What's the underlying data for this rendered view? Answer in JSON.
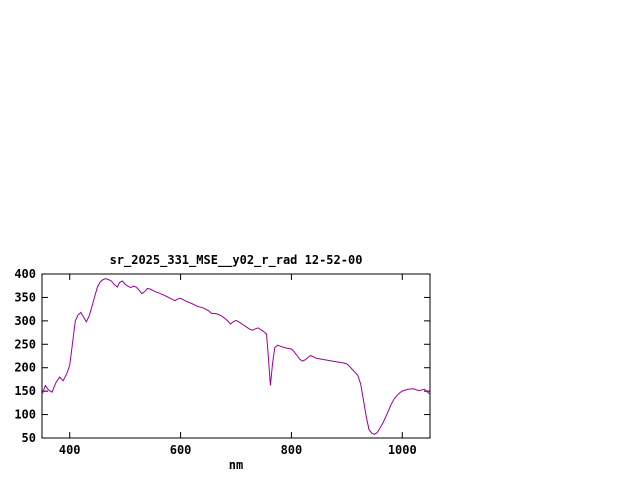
{
  "page": {
    "background": "#ffffff"
  },
  "chart_data": {
    "type": "line",
    "title": "sr_2025_331_MSE__y02_r_rad 12-52-00",
    "xlabel": "nm",
    "ylabel": "",
    "xlim": [
      350,
      1050
    ],
    "ylim": [
      50,
      400
    ],
    "xticks": [
      400,
      600,
      800,
      1000
    ],
    "yticks": [
      50,
      100,
      150,
      200,
      250,
      300,
      350,
      400
    ],
    "grid": false,
    "legend": "none",
    "line_color": "#990099",
    "x": [
      350,
      356,
      362,
      368,
      375,
      382,
      388,
      395,
      400,
      405,
      410,
      415,
      420,
      425,
      430,
      435,
      440,
      445,
      450,
      455,
      460,
      465,
      470,
      475,
      480,
      486,
      490,
      495,
      500,
      505,
      510,
      515,
      520,
      525,
      530,
      535,
      540,
      545,
      550,
      555,
      560,
      565,
      570,
      575,
      580,
      585,
      590,
      595,
      600,
      610,
      620,
      630,
      640,
      650,
      656,
      665,
      675,
      685,
      690,
      695,
      700,
      705,
      710,
      715,
      720,
      725,
      730,
      735,
      740,
      745,
      750,
      755,
      758,
      762,
      766,
      770,
      775,
      780,
      790,
      800,
      805,
      810,
      815,
      820,
      825,
      830,
      835,
      840,
      845,
      850,
      855,
      860,
      865,
      870,
      875,
      880,
      885,
      890,
      895,
      900,
      905,
      910,
      915,
      920,
      925,
      930,
      935,
      940,
      945,
      950,
      955,
      960,
      965,
      970,
      975,
      980,
      985,
      990,
      995,
      1000,
      1010,
      1020,
      1030,
      1040,
      1050
    ],
    "values": [
      143,
      162,
      152,
      148,
      168,
      180,
      172,
      188,
      205,
      252,
      300,
      312,
      318,
      308,
      298,
      310,
      330,
      352,
      372,
      383,
      388,
      390,
      388,
      385,
      378,
      372,
      382,
      385,
      378,
      374,
      371,
      374,
      372,
      366,
      358,
      362,
      369,
      368,
      365,
      362,
      360,
      357,
      355,
      352,
      349,
      346,
      343,
      347,
      348,
      342,
      337,
      331,
      328,
      322,
      316,
      315,
      310,
      300,
      293,
      298,
      301,
      298,
      294,
      290,
      286,
      282,
      280,
      283,
      285,
      281,
      277,
      272,
      230,
      162,
      210,
      243,
      248,
      246,
      242,
      240,
      234,
      226,
      218,
      214,
      217,
      222,
      226,
      223,
      220,
      219,
      218,
      217,
      216,
      215,
      214,
      213,
      212,
      211,
      210,
      208,
      203,
      196,
      190,
      183,
      165,
      130,
      95,
      68,
      60,
      58,
      62,
      72,
      82,
      95,
      108,
      122,
      133,
      140,
      146,
      150,
      154,
      155,
      151,
      154,
      143
    ]
  }
}
